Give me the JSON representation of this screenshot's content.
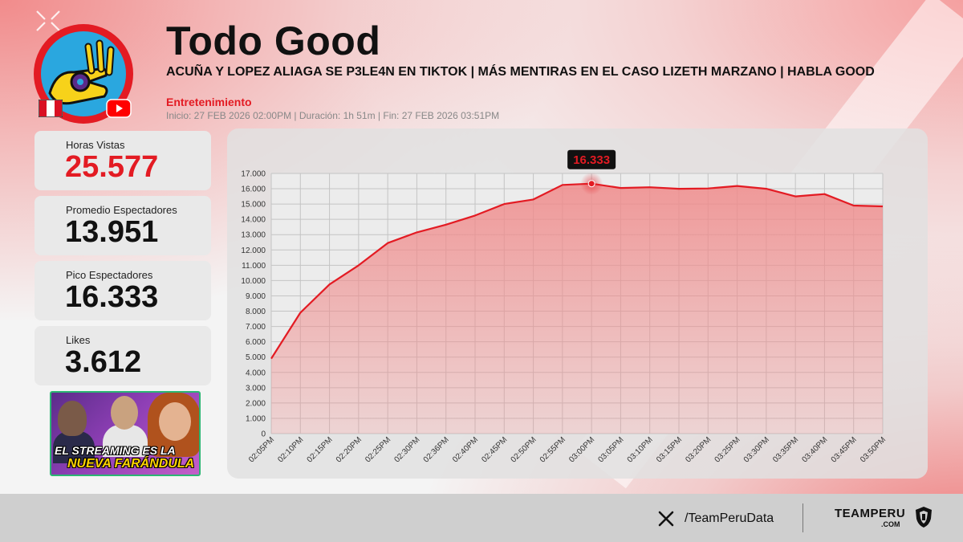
{
  "header": {
    "title": "Todo Good",
    "subtitle": "ACUÑA Y LOPEZ ALIAGA SE P3LE4N EN TIKTOK | MÁS MENTIRAS EN EL CASO LIZETH MARZANO | HABLA GOOD",
    "category": "Entretenimiento",
    "meta": "Inicio: 27 FEB 2026 02:00PM  |  Duración: 1h 51m  |  Fin: 27 FEB 2026 03:51PM"
  },
  "stats": [
    {
      "label": "Horas Vistas",
      "value": "25.577",
      "highlight": true
    },
    {
      "label": "Promedio Espectadores",
      "value": "13.951",
      "highlight": false
    },
    {
      "label": "Pico Espectadores",
      "value": "16.333",
      "highlight": false
    },
    {
      "label": "Likes",
      "value": "3.612",
      "highlight": false
    }
  ],
  "thumbnail": {
    "line1": "EL STREAMING ES LA",
    "line2": "NUEVA FARÁNDULA"
  },
  "colors": {
    "accent": "#e31b23",
    "line": "#e31b23",
    "area": "#f08a8a",
    "panel": "#e1e1e1"
  },
  "icons": {
    "flag": "peru-flag-icon",
    "platform": "youtube-icon",
    "social": "x-logo-icon",
    "brand": "shield-icon"
  },
  "chart_data": {
    "type": "area",
    "title": "",
    "xlabel": "",
    "ylabel": "",
    "ylim": [
      0,
      17000
    ],
    "yticks": [
      "0",
      "1.000",
      "2.000",
      "3.000",
      "4.000",
      "5.000",
      "6.000",
      "7.000",
      "8.000",
      "9.000",
      "10.000",
      "11.000",
      "12.000",
      "13.000",
      "14.000",
      "15.000",
      "16.000",
      "17.000"
    ],
    "categories": [
      "02:05PM",
      "02:10PM",
      "02:15PM",
      "02:20PM",
      "02:25PM",
      "02:30PM",
      "02:36PM",
      "02:40PM",
      "02:45PM",
      "02:50PM",
      "02:55PM",
      "03:00PM",
      "03:05PM",
      "03:10PM",
      "03:15PM",
      "03:20PM",
      "03:25PM",
      "03:30PM",
      "03:35PM",
      "03:40PM",
      "03:45PM",
      "03:50PM"
    ],
    "series": [
      {
        "values": [
          4900,
          7900,
          9750,
          11000,
          12450,
          13150,
          13650,
          14250,
          15000,
          15300,
          16250,
          16333,
          16050,
          16100,
          16000,
          16020,
          16180,
          16000,
          15500,
          15650,
          14900,
          14850
        ]
      }
    ],
    "peak": {
      "index": 11,
      "label": "16.333"
    },
    "grid": true,
    "legend": "none"
  },
  "footer": {
    "handle": "/TeamPeruData",
    "brand": "TEAMPERU",
    "brand_sub": ".COM"
  }
}
